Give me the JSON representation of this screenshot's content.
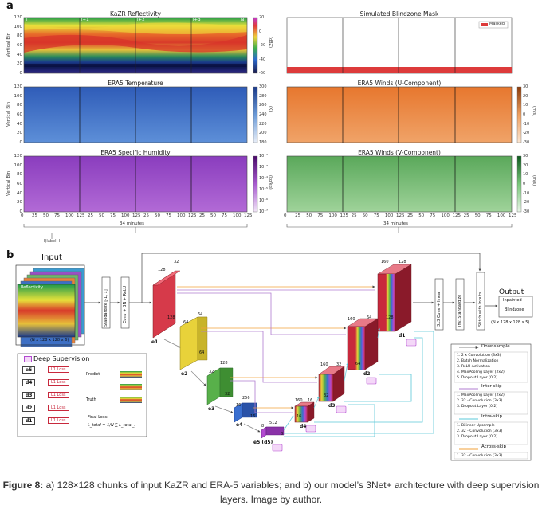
{
  "panel_a": {
    "letter": "a",
    "titles": {
      "kazr": "KaZR Reflectivity",
      "mask": "Simulated Blindzone Mask",
      "temp": "ERA5 Temperature",
      "wind_u": "ERA5 Winds (U-Component)",
      "humidity": "ERA5 Specific Humidity",
      "wind_v": "ERA5 Winds (V-Component)"
    },
    "ylabel": "Vertical Bin",
    "yticks": [
      "120",
      "100",
      "80",
      "60",
      "40",
      "20",
      "0"
    ],
    "xticks": [
      "0",
      "25",
      "50",
      "75",
      "100",
      "125",
      "25",
      "50",
      "75",
      "100",
      "125",
      "25",
      "50",
      "75",
      "100",
      "125",
      "25",
      "50",
      "75",
      "100",
      "125"
    ],
    "chunk_labels": [
      "i",
      "i+1",
      "i+2",
      "i+3",
      "N"
    ],
    "xlabel": "34 minutes",
    "mask_legend": "Masked",
    "cbar_kazr": {
      "ticks": [
        "20",
        "0",
        "-20",
        "-40",
        "-60"
      ],
      "unit": "(dBZ)"
    },
    "cbar_temp": {
      "ticks": [
        "300",
        "280",
        "260",
        "240",
        "220",
        "200",
        "180"
      ],
      "unit": "(K)"
    },
    "cbar_u": {
      "ticks": [
        "30",
        "20",
        "10",
        "0",
        "-10",
        "-20",
        "-30"
      ],
      "unit": "(m/s)"
    },
    "cbar_hum": {
      "ticks": [
        "10⁻²",
        "10⁻³",
        "10⁻⁴",
        "10⁻⁵",
        "10⁻⁶",
        "10⁻⁷"
      ],
      "unit": "(kg/kg)"
    },
    "cbar_v": {
      "ticks": [
        "30",
        "20",
        "10",
        "0",
        "-10",
        "-20",
        "-30"
      ],
      "unit": "(m/s)"
    },
    "colors": {
      "temp": "#3d6fc4",
      "wind_u": "#e8823a",
      "humidity": "#9a4fc4",
      "wind_v": "#6db86a",
      "mask": "#dd3b3b"
    }
  },
  "panel_b": {
    "letter": "b",
    "input_label": "Input",
    "input_side": "I(label) I",
    "input_reflectivity": "Reflectivity",
    "input_dims": "(N x 128 x 128 x 6)",
    "standardize": "Standardize [-1, 1]",
    "conv_bn": "Conv + BN + ReLU",
    "encoders": [
      {
        "name": "e1",
        "a": "128",
        "b": "32",
        "c": "128"
      },
      {
        "name": "e2",
        "a": "64",
        "b": "64",
        "c": "64"
      },
      {
        "name": "e3",
        "a": "32",
        "b": "128",
        "c": "32"
      },
      {
        "name": "e4",
        "a": "16",
        "b": "256",
        "c": "16"
      },
      {
        "name": "e5 (d5)",
        "a": "8",
        "b": "512",
        "c": "8"
      }
    ],
    "decoders": [
      {
        "name": "d1",
        "a": "160",
        "b": "128",
        "c": "128"
      },
      {
        "name": "d2",
        "a": "160",
        "b": "64",
        "c": "64"
      },
      {
        "name": "d3",
        "a": "160",
        "b": "32",
        "c": "32"
      },
      {
        "name": "d4",
        "a": "160",
        "b": "16",
        "c": "16"
      }
    ],
    "conv_final": "3x3 Conv + linear",
    "inv_standardize": "Inv. Standardize",
    "stitch": "Stitch with Inputs",
    "output_label": "Output",
    "output_box": [
      "Inpainted",
      "Blindzone"
    ],
    "output_dims": "(N x 128 x 128 x 5)",
    "deep_supervision": {
      "title": "Deep Supervision",
      "rows": [
        "e5",
        "d4",
        "d3",
        "d2",
        "d1"
      ],
      "loss_label": "L1 Loss",
      "predict": "Predict",
      "truth": "Truth",
      "final_loss": "Final Loss:",
      "formula": "L_total = 1/N ∑ L_total_i"
    },
    "legend": {
      "downsample": {
        "title": "Downsample",
        "items": [
          "1. 2 x Convolution (3x3)",
          "2. Batch Normalization",
          "3. ReLU Activation",
          "4. MaxPooling Layer (2x2)",
          "5. Dropout Layer (0.2)"
        ]
      },
      "inter_skip": {
        "title": "Inter-skip",
        "items": [
          "1. MaxPooling Layer (2x2)",
          "2. 32 - Convolution (3x3)",
          "3. Dropout Layer (0.2)"
        ]
      },
      "intra_skip": {
        "title": "Intra-skip",
        "items": [
          "1. Bilinear Upsample",
          "2. 32 - Convolution (3x3)",
          "3. Dropout Layer (0.2)"
        ]
      },
      "across_skip": {
        "title": "Across-skip",
        "items": [
          "1. 32 - Convolution (3x3)"
        ]
      },
      "colors": {
        "downsample": "#888888",
        "inter_skip": "#b07cd0",
        "intra_skip": "#5bc8d8",
        "across_skip": "#f2a23a"
      }
    },
    "block_colors": {
      "e1": "#d63a4a",
      "e2": "#e8d23a",
      "e3": "#58b04a",
      "e4": "#3a6fd0",
      "e5": "#b24ad0",
      "d": "#c8283c"
    }
  },
  "caption": {
    "label": "Figure 8:",
    "text": " a) 128×128 chunks of input KaZR and ERA-5 variables; and b) our model’s 3Net+ architecture with deep supervision layers. Image by author."
  }
}
